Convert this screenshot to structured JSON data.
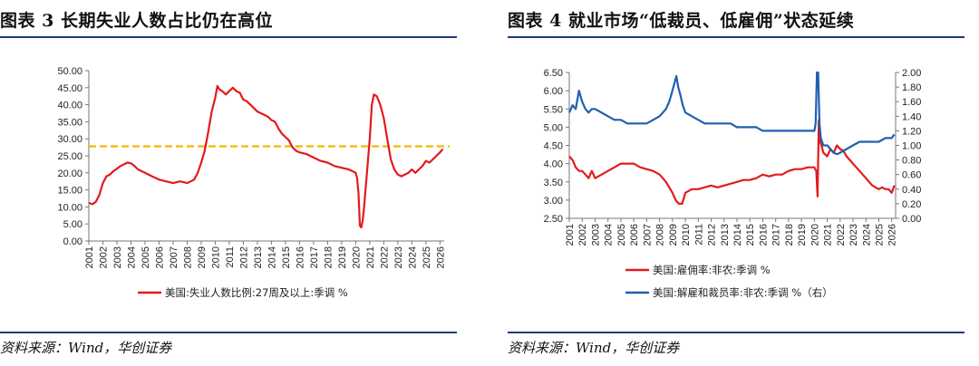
{
  "left": {
    "title": "图表 3  长期失业人数占比仍在高位",
    "source": "资料来源：Wind，华创证券",
    "chart_data": {
      "type": "line",
      "title": "",
      "xlabel": "",
      "ylabel": "",
      "ylim": [
        0,
        50
      ],
      "xlim": [
        2001,
        2026.3
      ],
      "yticks": [
        "0.00",
        "5.00",
        "10.00",
        "15.00",
        "20.00",
        "25.00",
        "30.00",
        "35.00",
        "40.00",
        "45.00",
        "50.00"
      ],
      "xticks": [
        "2001",
        "2002",
        "2003",
        "2004",
        "2005",
        "2006",
        "2007",
        "2008",
        "2009",
        "2010",
        "2011",
        "2012",
        "2013",
        "2014",
        "2015",
        "2016",
        "2017",
        "2018",
        "2019",
        "2020",
        "2021",
        "2022",
        "2023",
        "2024",
        "2025",
        "2026"
      ],
      "legend": "bottom",
      "reference_line": {
        "y": 27.8,
        "style": "dashed",
        "color": "#f5b800"
      },
      "series": [
        {
          "name": "美国:失业人数比例:27周及以上:季调 %",
          "color": "#e31a1c",
          "x": [
            2001.0,
            2001.25,
            2001.5,
            2001.75,
            2002.0,
            2002.25,
            2002.5,
            2002.75,
            2003.0,
            2003.25,
            2003.5,
            2003.75,
            2004.0,
            2004.25,
            2004.5,
            2004.75,
            2005.0,
            2005.5,
            2006.0,
            2006.5,
            2007.0,
            2007.5,
            2008.0,
            2008.25,
            2008.5,
            2008.75,
            2009.0,
            2009.25,
            2009.5,
            2009.75,
            2010.0,
            2010.15,
            2010.3,
            2010.5,
            2010.75,
            2011.0,
            2011.25,
            2011.5,
            2011.75,
            2012.0,
            2012.25,
            2012.5,
            2012.75,
            2013.0,
            2013.25,
            2013.5,
            2013.75,
            2014.0,
            2014.25,
            2014.5,
            2014.75,
            2015.0,
            2015.25,
            2015.5,
            2015.75,
            2016.0,
            2016.5,
            2017.0,
            2017.5,
            2018.0,
            2018.5,
            2019.0,
            2019.5,
            2019.75,
            2020.0,
            2020.1,
            2020.2,
            2020.3,
            2020.4,
            2020.5,
            2020.6,
            2020.7,
            2020.8,
            2021.0,
            2021.15,
            2021.3,
            2021.5,
            2021.75,
            2022.0,
            2022.25,
            2022.5,
            2022.75,
            2023.0,
            2023.25,
            2023.5,
            2023.75,
            2024.0,
            2024.25,
            2024.5,
            2024.75,
            2025.0,
            2025.25,
            2025.5,
            2025.75,
            2026.0,
            2026.2
          ],
          "y": [
            11.2,
            10.8,
            11.5,
            13.5,
            17.0,
            19.0,
            19.5,
            20.5,
            21.2,
            22.0,
            22.5,
            23.0,
            22.8,
            22.0,
            21.0,
            20.5,
            20.0,
            19.0,
            18.0,
            17.5,
            17.0,
            17.5,
            17.0,
            17.5,
            18.0,
            20.0,
            23.0,
            26.5,
            32.0,
            38.0,
            42.0,
            45.5,
            44.5,
            44.0,
            43.0,
            44.0,
            45.0,
            44.0,
            43.5,
            41.5,
            41.0,
            40.0,
            39.0,
            38.0,
            37.5,
            37.0,
            36.5,
            35.5,
            35.0,
            33.0,
            31.5,
            30.5,
            29.5,
            27.5,
            26.5,
            26.0,
            25.5,
            24.5,
            23.5,
            23.0,
            22.0,
            21.5,
            21.0,
            20.5,
            20.0,
            18.5,
            14.0,
            4.5,
            4.0,
            6.0,
            10.0,
            15.0,
            20.0,
            30.0,
            40.0,
            43.0,
            42.5,
            40.0,
            36.0,
            30.0,
            24.0,
            21.0,
            19.5,
            19.0,
            19.5,
            20.0,
            21.0,
            20.0,
            21.0,
            22.0,
            23.5,
            23.0,
            24.0,
            25.0,
            26.0,
            27.0
          ]
        }
      ]
    }
  },
  "right": {
    "title": "图表 4  就业市场“低裁员、低雇佣”状态延续",
    "source": "资料来源：Wind，华创证券",
    "chart_data": {
      "type": "line",
      "title": "",
      "xlabel": "",
      "ylabel": "",
      "ylim": [
        2.5,
        6.5
      ],
      "y2lim": [
        0.0,
        2.0
      ],
      "xlim": [
        2001,
        2026.3
      ],
      "yticks": [
        "2.50",
        "3.00",
        "3.50",
        "4.00",
        "4.50",
        "5.00",
        "5.50",
        "6.00",
        "6.50"
      ],
      "y2ticks": [
        "0.00",
        "0.20",
        "0.40",
        "0.60",
        "0.80",
        "1.00",
        "1.20",
        "1.40",
        "1.60",
        "1.80",
        "2.00"
      ],
      "xticks": [
        "2001",
        "2002",
        "2003",
        "2004",
        "2005",
        "2006",
        "2007",
        "2008",
        "2009",
        "2010",
        "2011",
        "2012",
        "2013",
        "2014",
        "2015",
        "2016",
        "2017",
        "2018",
        "2019",
        "2020",
        "2021",
        "2022",
        "2023",
        "2024",
        "2025",
        "2026"
      ],
      "legend": "bottom",
      "series": [
        {
          "name": "美国:雇佣率:非农:季调 %",
          "axis": "left",
          "color": "#e31a1c",
          "x": [
            2001.0,
            2001.25,
            2001.5,
            2001.75,
            2002.0,
            2002.25,
            2002.5,
            2002.75,
            2003.0,
            2003.5,
            2004.0,
            2004.5,
            2005.0,
            2005.5,
            2006.0,
            2006.5,
            2007.0,
            2007.5,
            2008.0,
            2008.25,
            2008.5,
            2008.75,
            2009.0,
            2009.25,
            2009.5,
            2009.75,
            2010.0,
            2010.5,
            2011.0,
            2011.5,
            2012.0,
            2012.5,
            2013.0,
            2013.5,
            2014.0,
            2014.5,
            2015.0,
            2015.5,
            2016.0,
            2016.5,
            2017.0,
            2017.5,
            2018.0,
            2018.5,
            2019.0,
            2019.5,
            2020.0,
            2020.15,
            2020.25,
            2020.35,
            2020.45,
            2020.55,
            2020.7,
            2021.0,
            2021.25,
            2021.5,
            2021.75,
            2022.0,
            2022.25,
            2022.5,
            2022.75,
            2023.0,
            2023.25,
            2023.5,
            2023.75,
            2024.0,
            2024.25,
            2024.5,
            2024.75,
            2025.0,
            2025.25,
            2025.5,
            2025.75,
            2026.0,
            2026.2
          ],
          "y": [
            4.2,
            4.1,
            3.9,
            3.8,
            3.8,
            3.7,
            3.6,
            3.8,
            3.6,
            3.7,
            3.8,
            3.9,
            4.0,
            4.0,
            4.0,
            3.9,
            3.85,
            3.8,
            3.7,
            3.6,
            3.5,
            3.35,
            3.2,
            3.0,
            2.9,
            2.9,
            3.2,
            3.3,
            3.3,
            3.35,
            3.4,
            3.35,
            3.4,
            3.45,
            3.5,
            3.55,
            3.55,
            3.6,
            3.7,
            3.65,
            3.7,
            3.7,
            3.8,
            3.85,
            3.85,
            3.9,
            3.9,
            3.8,
            3.1,
            5.2,
            4.6,
            4.5,
            4.3,
            4.2,
            4.4,
            4.3,
            4.5,
            4.4,
            4.35,
            4.2,
            4.1,
            4.0,
            3.9,
            3.8,
            3.7,
            3.6,
            3.5,
            3.4,
            3.35,
            3.3,
            3.35,
            3.3,
            3.3,
            3.2,
            3.4
          ]
        },
        {
          "name": "美国:解雇和裁员率:非农:季调 %（右）",
          "axis": "right",
          "color": "#1f5fb0",
          "x": [
            2001.0,
            2001.25,
            2001.5,
            2001.75,
            2002.0,
            2002.25,
            2002.5,
            2002.75,
            2003.0,
            2003.5,
            2004.0,
            2004.5,
            2005.0,
            2005.5,
            2006.0,
            2006.5,
            2007.0,
            2007.5,
            2008.0,
            2008.25,
            2008.5,
            2008.75,
            2009.0,
            2009.15,
            2009.3,
            2009.45,
            2009.6,
            2009.8,
            2010.0,
            2010.5,
            2011.0,
            2011.5,
            2012.0,
            2012.5,
            2013.0,
            2013.5,
            2014.0,
            2014.5,
            2015.0,
            2015.5,
            2016.0,
            2016.5,
            2017.0,
            2017.5,
            2018.0,
            2018.5,
            2019.0,
            2019.5,
            2020.0,
            2020.1,
            2020.2,
            2020.3,
            2020.4,
            2020.5,
            2020.7,
            2021.0,
            2021.25,
            2021.5,
            2021.75,
            2022.0,
            2022.5,
            2023.0,
            2023.5,
            2024.0,
            2024.5,
            2025.0,
            2025.5,
            2026.0,
            2026.2
          ],
          "y": [
            1.45,
            1.55,
            1.5,
            1.75,
            1.6,
            1.5,
            1.45,
            1.5,
            1.5,
            1.45,
            1.4,
            1.35,
            1.35,
            1.3,
            1.3,
            1.3,
            1.3,
            1.35,
            1.4,
            1.45,
            1.5,
            1.6,
            1.75,
            1.85,
            1.95,
            1.8,
            1.7,
            1.55,
            1.45,
            1.4,
            1.35,
            1.3,
            1.3,
            1.3,
            1.3,
            1.3,
            1.25,
            1.25,
            1.25,
            1.25,
            1.2,
            1.2,
            1.2,
            1.2,
            1.2,
            1.2,
            1.2,
            1.2,
            1.2,
            1.3,
            2.0,
            2.0,
            1.3,
            1.1,
            1.0,
            1.0,
            0.95,
            0.9,
            0.88,
            0.9,
            0.95,
            1.0,
            1.05,
            1.05,
            1.05,
            1.05,
            1.1,
            1.1,
            1.15
          ]
        }
      ]
    }
  }
}
